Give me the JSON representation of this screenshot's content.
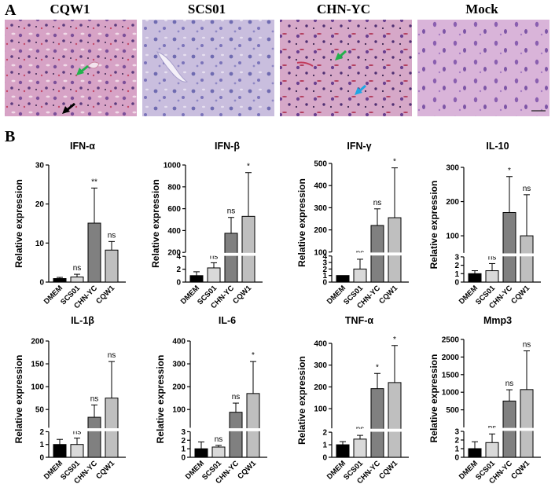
{
  "figure": {
    "panel_a_label": "A",
    "panel_b_label": "B",
    "histology_titles": [
      "CQW1",
      "SCS01",
      "CHN-YC",
      "Mock"
    ]
  },
  "colors": {
    "DMEM": "#000000",
    "SCS01": "#d9d9d9",
    "CHN-YC": "#808080",
    "CQW1": "#bfbfbf",
    "tissue_background": "#d8a9c9",
    "arrow_green": "#22b14c",
    "arrow_blue": "#1ea7e4",
    "arrow_black": "#000000"
  },
  "chart_data": [
    {
      "type": "bar",
      "title": "IFN-α",
      "ylabel": "Relative expression",
      "categories": [
        "DMEM",
        "SCS01",
        "CHN-YC",
        "CQW1"
      ],
      "broken_axis": false,
      "ylim": [
        0,
        30
      ],
      "ticks": [
        "0",
        "10",
        "20",
        "30"
      ],
      "values": [
        0.9,
        1.3,
        15.1,
        8.2
      ],
      "errors": [
        0.3,
        0.7,
        9.0,
        2.2
      ],
      "significance": [
        "",
        "ns",
        "**",
        "ns"
      ]
    },
    {
      "type": "bar",
      "title": "IFN-β",
      "ylabel": "Relative expression",
      "categories": [
        "DMEM",
        "SCS01",
        "CHN-YC",
        "CQW1"
      ],
      "broken_axis": true,
      "lower": {
        "ylim": [
          0,
          4
        ],
        "ticks": [
          "0",
          "2",
          "4"
        ]
      },
      "upper": {
        "ylim": [
          200,
          1000
        ],
        "ticks": [
          "200",
          "400",
          "600",
          "800",
          "1000"
        ]
      },
      "values": [
        1.0,
        2.2,
        375,
        530
      ],
      "errors": [
        0.6,
        0.8,
        145,
        400
      ],
      "significance": [
        "",
        "ns",
        "ns",
        "*"
      ]
    },
    {
      "type": "bar",
      "title": "IFN-γ",
      "ylabel": "Relative expression",
      "categories": [
        "DMEM",
        "SCS01",
        "CHN-YC",
        "CQW1"
      ],
      "broken_axis": true,
      "lower": {
        "ylim": [
          0,
          4
        ],
        "ticks": [
          "0",
          "1",
          "2",
          "3",
          "4"
        ]
      },
      "upper": {
        "ylim": [
          100,
          500
        ],
        "ticks": [
          "100",
          "200",
          "300",
          "400",
          "500"
        ]
      },
      "values": [
        1.0,
        2.0,
        220,
        255
      ],
      "errors": [
        0.0,
        1.5,
        75,
        225
      ],
      "significance": [
        "",
        "ns",
        "ns",
        "*"
      ]
    },
    {
      "type": "bar",
      "title": "IL-10",
      "ylabel": "Relative expression",
      "categories": [
        "DMEM",
        "SCS01",
        "CHN-YC",
        "CQW1"
      ],
      "broken_axis": true,
      "lower": {
        "ylim": [
          0,
          3
        ],
        "ticks": [
          "0",
          "1",
          "2",
          "3"
        ]
      },
      "upper": {
        "ylim": [
          50,
          300
        ],
        "ticks": [
          "100",
          "200",
          "300"
        ]
      },
      "values": [
        1.0,
        1.35,
        168,
        100
      ],
      "errors": [
        0.35,
        0.85,
        105,
        120
      ],
      "significance": [
        "",
        "ns",
        "*",
        "ns"
      ]
    },
    {
      "type": "bar",
      "title": "IL-1β",
      "ylabel": "Relative expression",
      "categories": [
        "DMEM",
        "SCS01",
        "CHN-YC",
        "CQW1"
      ],
      "broken_axis": true,
      "lower": {
        "ylim": [
          0,
          2
        ],
        "ticks": [
          "0",
          "1",
          "2"
        ]
      },
      "upper": {
        "ylim": [
          10,
          200
        ],
        "ticks": [
          "50",
          "100",
          "150",
          "200"
        ]
      },
      "values": [
        1.0,
        1.0,
        33,
        75
      ],
      "errors": [
        0.4,
        0.5,
        27,
        80
      ],
      "significance": [
        "",
        "ns",
        "ns",
        "ns"
      ]
    },
    {
      "type": "bar",
      "title": "IL-6",
      "ylabel": "Relative expression",
      "categories": [
        "DMEM",
        "SCS01",
        "CHN-YC",
        "CQW1"
      ],
      "broken_axis": true,
      "lower": {
        "ylim": [
          0,
          3
        ],
        "ticks": [
          "0",
          "1",
          "2",
          "3"
        ]
      },
      "upper": {
        "ylim": [
          20,
          400
        ],
        "ticks": [
          "100",
          "200",
          "300",
          "400"
        ]
      },
      "values": [
        1.0,
        1.2,
        88,
        170
      ],
      "errors": [
        0.8,
        0.2,
        40,
        140
      ],
      "significance": [
        "",
        "ns",
        "ns",
        "*"
      ]
    },
    {
      "type": "bar",
      "title": "TNF-α",
      "ylabel": "Relative expression",
      "categories": [
        "DMEM",
        "SCS01",
        "CHN-YC",
        "CQW1"
      ],
      "broken_axis": true,
      "lower": {
        "ylim": [
          0,
          2
        ],
        "ticks": [
          "0",
          "1",
          "2"
        ]
      },
      "upper": {
        "ylim": [
          10,
          400
        ],
        "ticks": [
          "100",
          "200",
          "300",
          "400"
        ]
      },
      "values": [
        1.0,
        1.45,
        192,
        220
      ],
      "errors": [
        0.25,
        0.3,
        70,
        170
      ],
      "significance": [
        "",
        "ns",
        "*",
        "*"
      ]
    },
    {
      "type": "bar",
      "title": "Mmp3",
      "ylabel": "Relative expression",
      "categories": [
        "DMEM",
        "SCS01",
        "CHN-YC",
        "CQW1"
      ],
      "broken_axis": true,
      "lower": {
        "ylim": [
          0,
          3
        ],
        "ticks": [
          "0",
          "1",
          "2",
          "3"
        ]
      },
      "upper": {
        "ylim": [
          0,
          2500
        ],
        "ticks": [
          "500",
          "1000",
          "1500",
          "2000",
          "2500"
        ]
      },
      "values": [
        1.0,
        1.7,
        750,
        1075
      ],
      "errors": [
        0.8,
        1.0,
        320,
        1100
      ],
      "significance": [
        "",
        "ns",
        "ns",
        "ns"
      ]
    }
  ]
}
